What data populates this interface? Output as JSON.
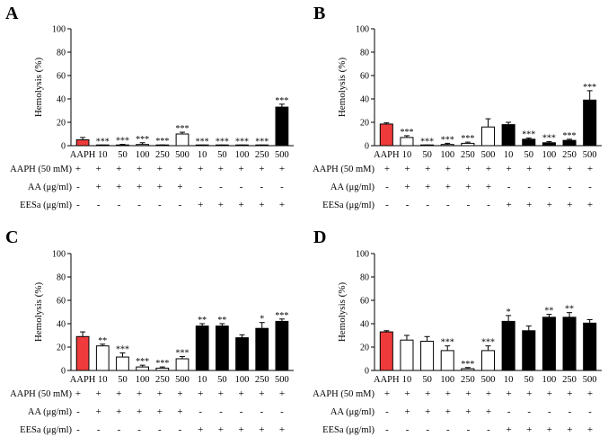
{
  "colors": {
    "aaph": "#ef3b3b",
    "aa": "#ffffff",
    "eesa": "#000000",
    "axis": "#000000"
  },
  "chart_data": [
    {
      "type": "bar",
      "panel_label": "A",
      "ylabel": "Hemolysis (%)",
      "ylim": [
        0,
        100
      ],
      "yticks": [
        0,
        20,
        40,
        60,
        80,
        100
      ],
      "categories": [
        "AAPH",
        "10",
        "50",
        "100",
        "250",
        "500",
        "10",
        "50",
        "100",
        "250",
        "500"
      ],
      "groups": [
        "AAPH",
        "AA",
        "AA",
        "AA",
        "AA",
        "AA",
        "EESa",
        "EESa",
        "EESa",
        "EESa",
        "EESa"
      ],
      "values": [
        5,
        0.3,
        0.6,
        1,
        0.3,
        10,
        0.3,
        0.3,
        0.3,
        0.3,
        33
      ],
      "errors": [
        2,
        0.2,
        0.5,
        1.5,
        0.3,
        1.5,
        0.2,
        0.2,
        0.2,
        0.2,
        2.5
      ],
      "annotations": [
        "",
        "***",
        "***",
        "***",
        "***",
        "***",
        "***",
        "***",
        "***",
        "***",
        "***"
      ],
      "conditions": [
        {
          "label": "AAPH (50 mM)",
          "marks": [
            "+",
            "+",
            "+",
            "+",
            "+",
            "+",
            "+",
            "+",
            "+",
            "+",
            "+"
          ]
        },
        {
          "label": "AA (μg/ml)",
          "marks": [
            "-",
            "+",
            "+",
            "+",
            "+",
            "+",
            "-",
            "-",
            "-",
            "-",
            "-"
          ]
        },
        {
          "label": "EESa (μg/ml)",
          "marks": [
            "-",
            "-",
            "-",
            "-",
            "-",
            "-",
            "+",
            "+",
            "+",
            "+",
            "+"
          ]
        }
      ]
    },
    {
      "type": "bar",
      "panel_label": "B",
      "ylabel": "Hemolysis (%)",
      "ylim": [
        0,
        100
      ],
      "yticks": [
        0,
        20,
        40,
        60,
        80,
        100
      ],
      "categories": [
        "AAPH",
        "10",
        "50",
        "100",
        "250",
        "500",
        "10",
        "50",
        "100",
        "250",
        "500"
      ],
      "groups": [
        "AAPH",
        "AA",
        "AA",
        "AA",
        "AA",
        "AA",
        "EESa",
        "EESa",
        "EESa",
        "EESa",
        "EESa"
      ],
      "values": [
        18.5,
        7,
        0.3,
        1,
        2,
        16,
        18,
        5.5,
        2.5,
        4.5,
        39
      ],
      "errors": [
        1,
        1.5,
        0.2,
        1,
        1,
        7,
        2,
        1,
        1,
        1,
        8
      ],
      "annotations": [
        "",
        "***",
        "***",
        "***",
        "***",
        "",
        "",
        "***",
        "***",
        "***",
        "***"
      ],
      "conditions": [
        {
          "label": "AAPH (50 mM)",
          "marks": [
            "+",
            "+",
            "+",
            "+",
            "+",
            "+",
            "+",
            "+",
            "+",
            "+",
            "+"
          ]
        },
        {
          "label": "AA (μg/ml)",
          "marks": [
            "-",
            "+",
            "+",
            "+",
            "+",
            "+",
            "-",
            "-",
            "-",
            "-",
            "-"
          ]
        },
        {
          "label": "EESa (μg/ml)",
          "marks": [
            "-",
            "-",
            "-",
            "-",
            "-",
            "-",
            "+",
            "+",
            "+",
            "+",
            "+"
          ]
        }
      ]
    },
    {
      "type": "bar",
      "panel_label": "C",
      "ylabel": "Hemolysis (%)",
      "ylim": [
        0,
        100
      ],
      "yticks": [
        0,
        20,
        40,
        60,
        80,
        100
      ],
      "categories": [
        "AAPH",
        "10",
        "50",
        "100",
        "250",
        "500",
        "10",
        "50",
        "100",
        "250",
        "500"
      ],
      "groups": [
        "AAPH",
        "AA",
        "AA",
        "AA",
        "AA",
        "AA",
        "EESa",
        "EESa",
        "EESa",
        "EESa",
        "EESa"
      ],
      "values": [
        29,
        21,
        11.5,
        3,
        2,
        10,
        38,
        38,
        28,
        36,
        42
      ],
      "errors": [
        4,
        1.5,
        3.5,
        1.5,
        1,
        2,
        2,
        2,
        2.5,
        5,
        2
      ],
      "annotations": [
        "",
        "**",
        "***",
        "***",
        "***",
        "***",
        "**",
        "**",
        "",
        "*",
        "***"
      ],
      "conditions": [
        {
          "label": "AAPH (50 mM)",
          "marks": [
            "+",
            "+",
            "+",
            "+",
            "+",
            "+",
            "+",
            "+",
            "+",
            "+",
            "+"
          ]
        },
        {
          "label": "AA (μg/ml)",
          "marks": [
            "-",
            "+",
            "+",
            "+",
            "+",
            "+",
            "-",
            "-",
            "-",
            "-",
            "-"
          ]
        },
        {
          "label": "EESa (μg/ml)",
          "marks": [
            "-",
            "-",
            "-",
            "-",
            "-",
            "-",
            "+",
            "+",
            "+",
            "+",
            "+"
          ]
        }
      ]
    },
    {
      "type": "bar",
      "panel_label": "D",
      "ylabel": "Hemolysis (%)",
      "ylim": [
        0,
        100
      ],
      "yticks": [
        0,
        20,
        40,
        60,
        80,
        100
      ],
      "categories": [
        "AAPH",
        "10",
        "50",
        "100",
        "250",
        "500",
        "10",
        "50",
        "100",
        "250",
        "500"
      ],
      "groups": [
        "AAPH",
        "AA",
        "AA",
        "AA",
        "AA",
        "AA",
        "EESa",
        "EESa",
        "EESa",
        "EESa",
        "EESa"
      ],
      "values": [
        33,
        26,
        25,
        17,
        1.5,
        17,
        42,
        34,
        45.5,
        45.5,
        40.5
      ],
      "errors": [
        1,
        4,
        4,
        4,
        1,
        4,
        5,
        4,
        2.5,
        4,
        3
      ],
      "annotations": [
        "",
        "",
        "",
        "***",
        "***",
        "***",
        "*",
        "",
        "**",
        "**",
        ""
      ],
      "conditions": [
        {
          "label": "AAPH (50 mM)",
          "marks": [
            "+",
            "+",
            "+",
            "+",
            "+",
            "+",
            "+",
            "+",
            "+",
            "+",
            "+"
          ]
        },
        {
          "label": "AA (μg/ml)",
          "marks": [
            "-",
            "+",
            "+",
            "+",
            "+",
            "+",
            "-",
            "-",
            "-",
            "-",
            "-"
          ]
        },
        {
          "label": "EESa (μg/ml)",
          "marks": [
            "-",
            "-",
            "-",
            "-",
            "-",
            "-",
            "+",
            "+",
            "+",
            "+",
            "+"
          ]
        }
      ]
    }
  ]
}
